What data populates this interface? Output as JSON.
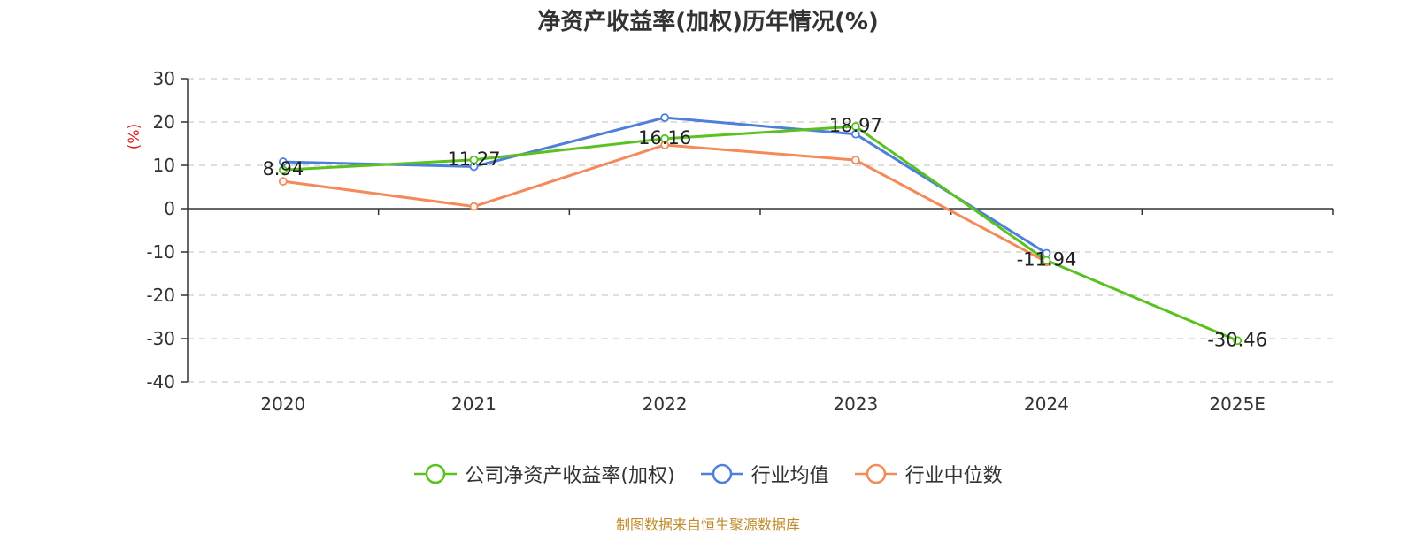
{
  "chart_data": {
    "type": "line",
    "title": "净资产收益率(加权)历年情况(%)",
    "ylabel": "(%)",
    "xlabel": "",
    "categories": [
      "2020",
      "2021",
      "2022",
      "2023",
      "2024",
      "2025E"
    ],
    "ylim": [
      -40,
      30
    ],
    "yticks": [
      30,
      20,
      10,
      0,
      -10,
      -20,
      -30,
      -40
    ],
    "grid": true,
    "legend_position": "bottom",
    "series": [
      {
        "name": "公司净资产收益率(加权)",
        "color": "#5ac21e",
        "values": [
          8.94,
          11.27,
          16.16,
          18.97,
          -11.94,
          -30.46
        ],
        "labels": [
          "8.94",
          "11.27",
          "16.16",
          "18.97",
          "-11.94",
          "-30.46"
        ]
      },
      {
        "name": "行业均值",
        "color": "#4e7fdb",
        "values": [
          10.8,
          9.7,
          21.0,
          17.2,
          -10.3,
          null
        ]
      },
      {
        "name": "行业中位数",
        "color": "#f48a5a",
        "values": [
          6.3,
          0.5,
          14.7,
          11.2,
          -12.3,
          null
        ]
      }
    ]
  },
  "source": "制图数据来自恒生聚源数据库"
}
